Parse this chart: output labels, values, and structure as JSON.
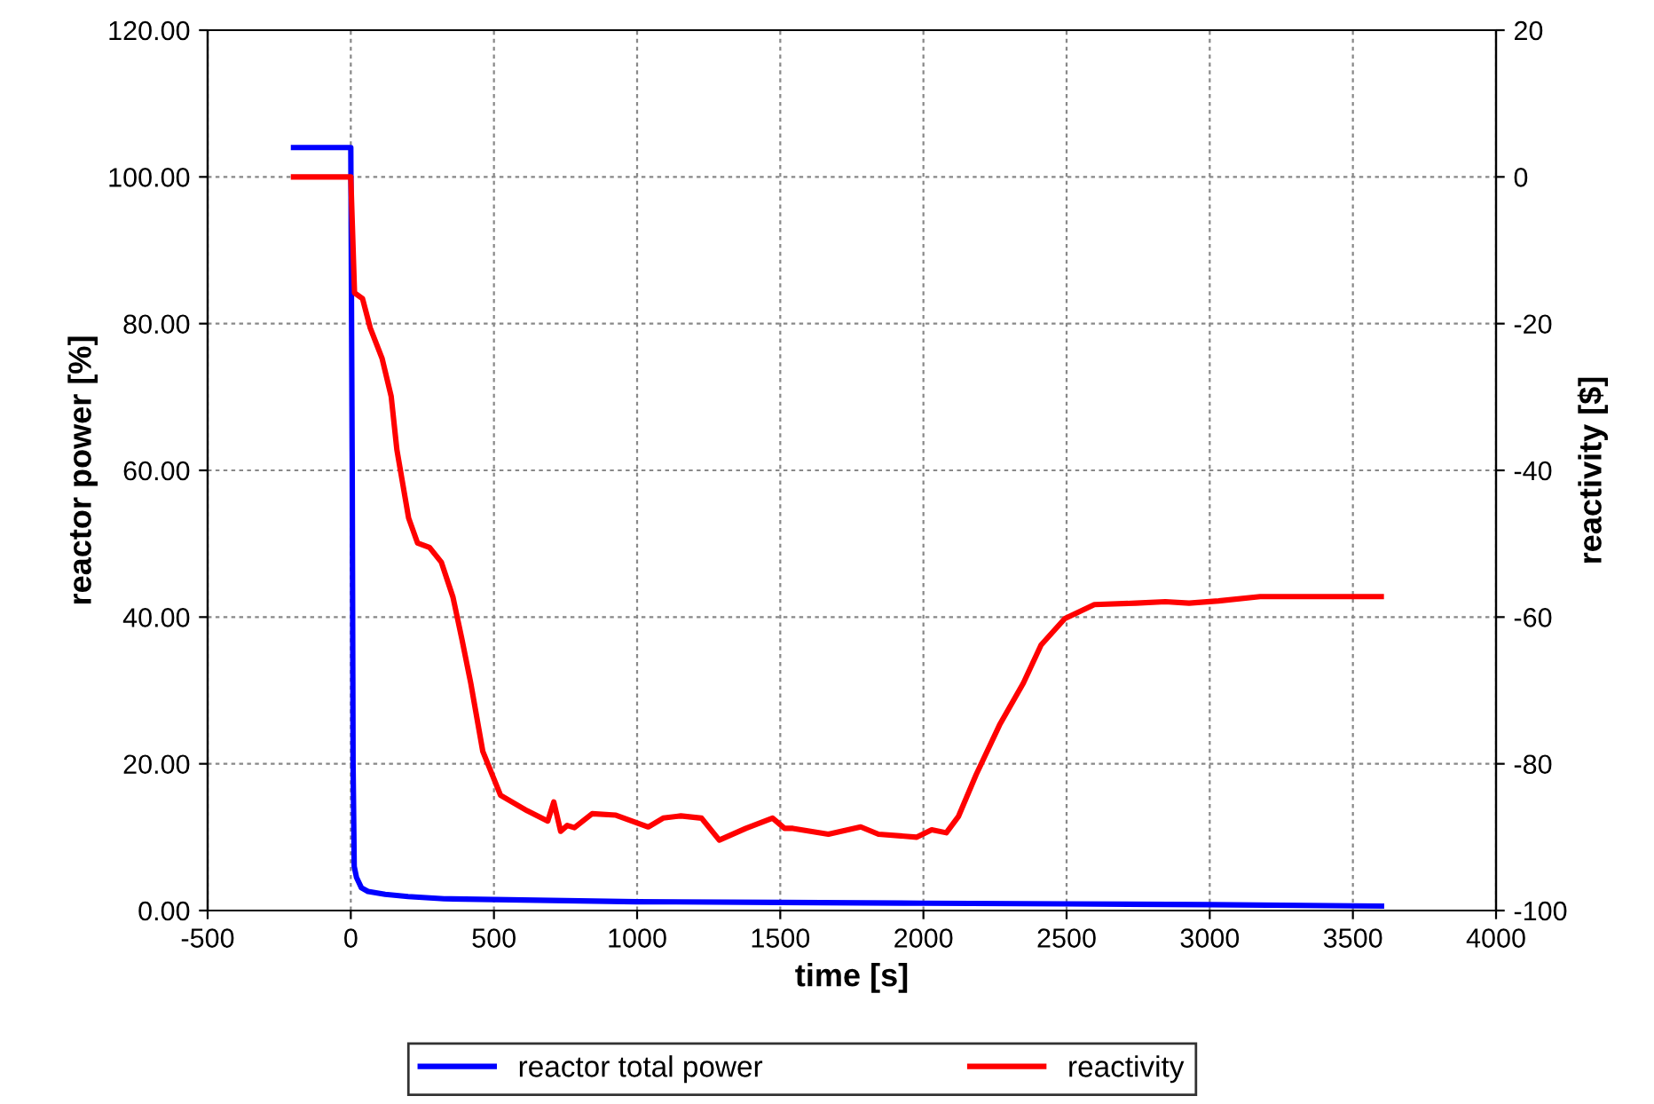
{
  "chart_data": {
    "type": "line",
    "xlabel": "time [s]",
    "ylabel": "reactor power [%]",
    "y2label": "reactivity [$]",
    "xlim": [
      -500,
      4000
    ],
    "xticks": [
      -500,
      0,
      500,
      1000,
      1500,
      2000,
      2500,
      3000,
      3500,
      4000
    ],
    "ylim": [
      0,
      120
    ],
    "yticks": [
      {
        "value": 0,
        "label": "0.00"
      },
      {
        "value": 20,
        "label": "20.00"
      },
      {
        "value": 40,
        "label": "40.00"
      },
      {
        "value": 60,
        "label": "60.00"
      },
      {
        "value": 80,
        "label": "80.00"
      },
      {
        "value": 100,
        "label": "100.00"
      },
      {
        "value": 120,
        "label": "120.00"
      }
    ],
    "y2lim": [
      -100,
      20
    ],
    "y2ticks": [
      -100,
      -80,
      -60,
      -40,
      -20,
      0,
      20
    ],
    "grid": true,
    "legend": "bottom",
    "marker": "none",
    "line_style": "solid",
    "series": [
      {
        "name": "reactor total power",
        "color": "#0000ff",
        "x": [
          -200,
          -10,
          0,
          5,
          8,
          12,
          20,
          37,
          60,
          120,
          200,
          326,
          500,
          1000,
          1500,
          2000,
          2500,
          3000,
          3600
        ],
        "values": [
          104,
          104,
          104,
          60,
          20,
          6,
          4.5,
          3.1,
          2.6,
          2.2,
          1.9,
          1.6,
          1.5,
          1.2,
          1.1,
          1.0,
          0.9,
          0.8,
          0.6
        ]
      },
      {
        "name": "reactivity",
        "color": "#ff0000",
        "axis": "y2",
        "x": [
          -200,
          0,
          13,
          41,
          68,
          109,
          141,
          161,
          202,
          233,
          275,
          316,
          357,
          388,
          419,
          461,
          523,
          616,
          688,
          709,
          733,
          756,
          781,
          843,
          926,
          1039,
          1091,
          1153,
          1225,
          1287,
          1380,
          1473,
          1515,
          1544,
          1668,
          1781,
          1843,
          1977,
          2029,
          2080,
          2122,
          2184,
          2266,
          2349,
          2411,
          2494,
          2597,
          2742,
          2845,
          2928,
          3031,
          3176,
          3599
        ],
        "values": [
          0,
          0,
          -15.8,
          -16.6,
          -20.6,
          -24.7,
          -29.9,
          -37.2,
          -46.5,
          -49.9,
          -50.5,
          -52.5,
          -57.3,
          -63.0,
          -69.0,
          -78.3,
          -84.3,
          -86.4,
          -87.8,
          -85.2,
          -89.2,
          -88.4,
          -88.7,
          -86.8,
          -87.0,
          -88.6,
          -87.4,
          -87.1,
          -87.4,
          -90.4,
          -88.8,
          -87.4,
          -88.8,
          -88.8,
          -89.6,
          -88.6,
          -89.6,
          -90.0,
          -89.0,
          -89.4,
          -87.2,
          -81.5,
          -74.7,
          -69.0,
          -63.8,
          -60.2,
          -58.3,
          -58.1,
          -57.9,
          -58.1,
          -57.8,
          -57.2,
          -57.2
        ]
      }
    ]
  }
}
